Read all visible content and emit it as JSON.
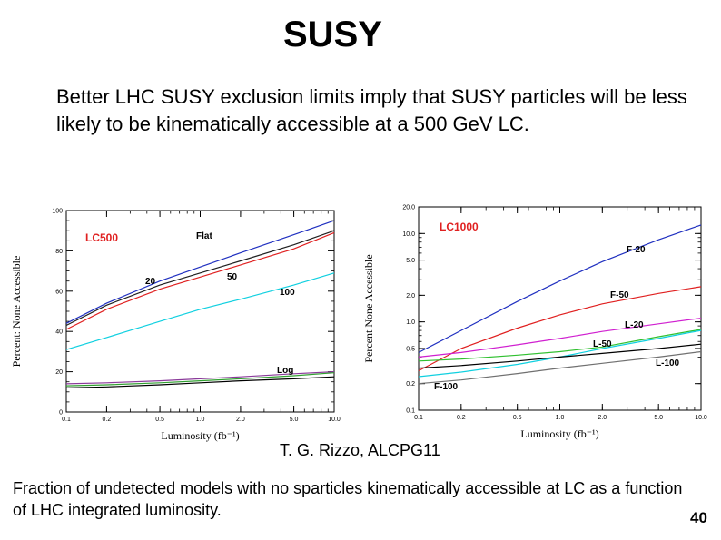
{
  "title": "SUSY",
  "intro": "Better LHC SUSY exclusion limits imply that SUSY particles will be less likely to be kinematically accessible at a 500 GeV LC.",
  "credit": "T. G. Rizzo, ALCPG11",
  "caption": "Fraction of undetected models with no sparticles kinematically accessible at LC as a function of LHC integrated luminosity.",
  "page_number": "40",
  "chart_data": [
    {
      "type": "line",
      "panel_label": "LC500",
      "xlabel": "Luminosity (fb⁻¹)",
      "ylabel": "Percent: None Accessible",
      "xscale": "log",
      "yscale": "linear",
      "xlim": [
        0.1,
        10.0
      ],
      "ylim": [
        0,
        100
      ],
      "x_ticks": [
        "0.1",
        "0.2",
        "0.5",
        "1.0",
        "2.0",
        "5.0",
        "10.0"
      ],
      "y_ticks": [
        "0",
        "20",
        "40",
        "60",
        "80",
        "100"
      ],
      "label_color": "#e02020",
      "series": [
        {
          "name": "Flat",
          "color": "#2030c0",
          "x": [
            0.1,
            0.2,
            0.5,
            1.0,
            2.0,
            5.0,
            10.0
          ],
          "y": [
            44,
            54,
            65,
            72,
            79,
            88,
            95
          ]
        },
        {
          "name": "20",
          "color": "#202020",
          "x": [
            0.1,
            0.2,
            0.5,
            1.0,
            2.0,
            5.0,
            10.0
          ],
          "y": [
            43,
            53,
            63,
            69,
            75,
            83,
            90
          ]
        },
        {
          "name": "50",
          "color": "#e02020",
          "x": [
            0.1,
            0.2,
            0.5,
            1.0,
            2.0,
            5.0,
            10.0
          ],
          "y": [
            41,
            51,
            61,
            67,
            73,
            81,
            89
          ]
        },
        {
          "name": "100",
          "color": "#10d0e0",
          "x": [
            0.1,
            0.2,
            0.5,
            1.0,
            2.0,
            5.0,
            10.0
          ],
          "y": [
            31,
            37,
            45,
            51,
            56,
            63,
            69
          ]
        },
        {
          "name": "Log",
          "color": "#8a3a9a",
          "x": [
            0.1,
            0.2,
            0.5,
            1.0,
            2.0,
            5.0,
            10.0
          ],
          "y": [
            14,
            14.5,
            15.5,
            16.5,
            17.5,
            19,
            20
          ]
        },
        {
          "name": "",
          "color": "#30a030",
          "x": [
            0.1,
            0.2,
            0.5,
            1.0,
            2.0,
            5.0,
            10.0
          ],
          "y": [
            13,
            13.5,
            14.5,
            15.5,
            16.5,
            18,
            19.5
          ]
        },
        {
          "name": "",
          "color": "#000000",
          "x": [
            0.1,
            0.2,
            0.5,
            1.0,
            2.0,
            5.0,
            10.0
          ],
          "y": [
            12,
            12.5,
            13.5,
            14.5,
            15.5,
            16.5,
            17.5
          ]
        }
      ]
    },
    {
      "type": "line",
      "panel_label": "LC1000",
      "xlabel": "Luminosity (fb⁻¹)",
      "ylabel": "Percent None Accessible",
      "xscale": "log",
      "yscale": "log",
      "xlim": [
        0.1,
        10.0
      ],
      "ylim": [
        0.1,
        20.0
      ],
      "x_ticks": [
        "0.1",
        "0.2",
        "0.5",
        "1.0",
        "2.0",
        "5.0",
        "10.0"
      ],
      "y_ticks": [
        "0.1",
        "0.2",
        "0.5",
        "1.0",
        "2.0",
        "5.0",
        "10.0",
        "20.0"
      ],
      "label_color": "#e02020",
      "series": [
        {
          "name": "F-20",
          "color": "#2030c0",
          "x": [
            0.1,
            0.2,
            0.5,
            1.0,
            2.0,
            5.0,
            10.0
          ],
          "y": [
            0.45,
            0.8,
            1.7,
            2.9,
            4.8,
            8.5,
            12.5
          ]
        },
        {
          "name": "F-50",
          "color": "#e02020",
          "x": [
            0.1,
            0.2,
            0.5,
            1.0,
            2.0,
            5.0,
            10.0
          ],
          "y": [
            0.28,
            0.5,
            0.85,
            1.2,
            1.6,
            2.1,
            2.5
          ]
        },
        {
          "name": "L-20",
          "color": "#d020d0",
          "x": [
            0.1,
            0.2,
            0.5,
            1.0,
            2.0,
            5.0,
            10.0
          ],
          "y": [
            0.4,
            0.45,
            0.55,
            0.65,
            0.78,
            0.95,
            1.1
          ]
        },
        {
          "name": "L-50",
          "color": "#30c030",
          "x": [
            0.1,
            0.2,
            0.5,
            1.0,
            2.0,
            5.0,
            10.0
          ],
          "y": [
            0.36,
            0.38,
            0.42,
            0.46,
            0.52,
            0.68,
            0.82
          ]
        },
        {
          "name": "",
          "color": "#10d0e0",
          "x": [
            0.1,
            0.2,
            0.5,
            1.0,
            2.0,
            5.0,
            10.0
          ],
          "y": [
            0.24,
            0.27,
            0.33,
            0.4,
            0.5,
            0.65,
            0.8
          ]
        },
        {
          "name": "L-100",
          "color": "#000000",
          "x": [
            0.1,
            0.2,
            0.5,
            1.0,
            2.0,
            5.0,
            10.0
          ],
          "y": [
            0.3,
            0.32,
            0.36,
            0.4,
            0.44,
            0.5,
            0.56
          ]
        },
        {
          "name": "F-100",
          "color": "#707070",
          "x": [
            0.1,
            0.2,
            0.5,
            1.0,
            2.0,
            5.0,
            10.0
          ],
          "y": [
            0.2,
            0.22,
            0.26,
            0.3,
            0.34,
            0.4,
            0.46
          ]
        }
      ]
    }
  ]
}
